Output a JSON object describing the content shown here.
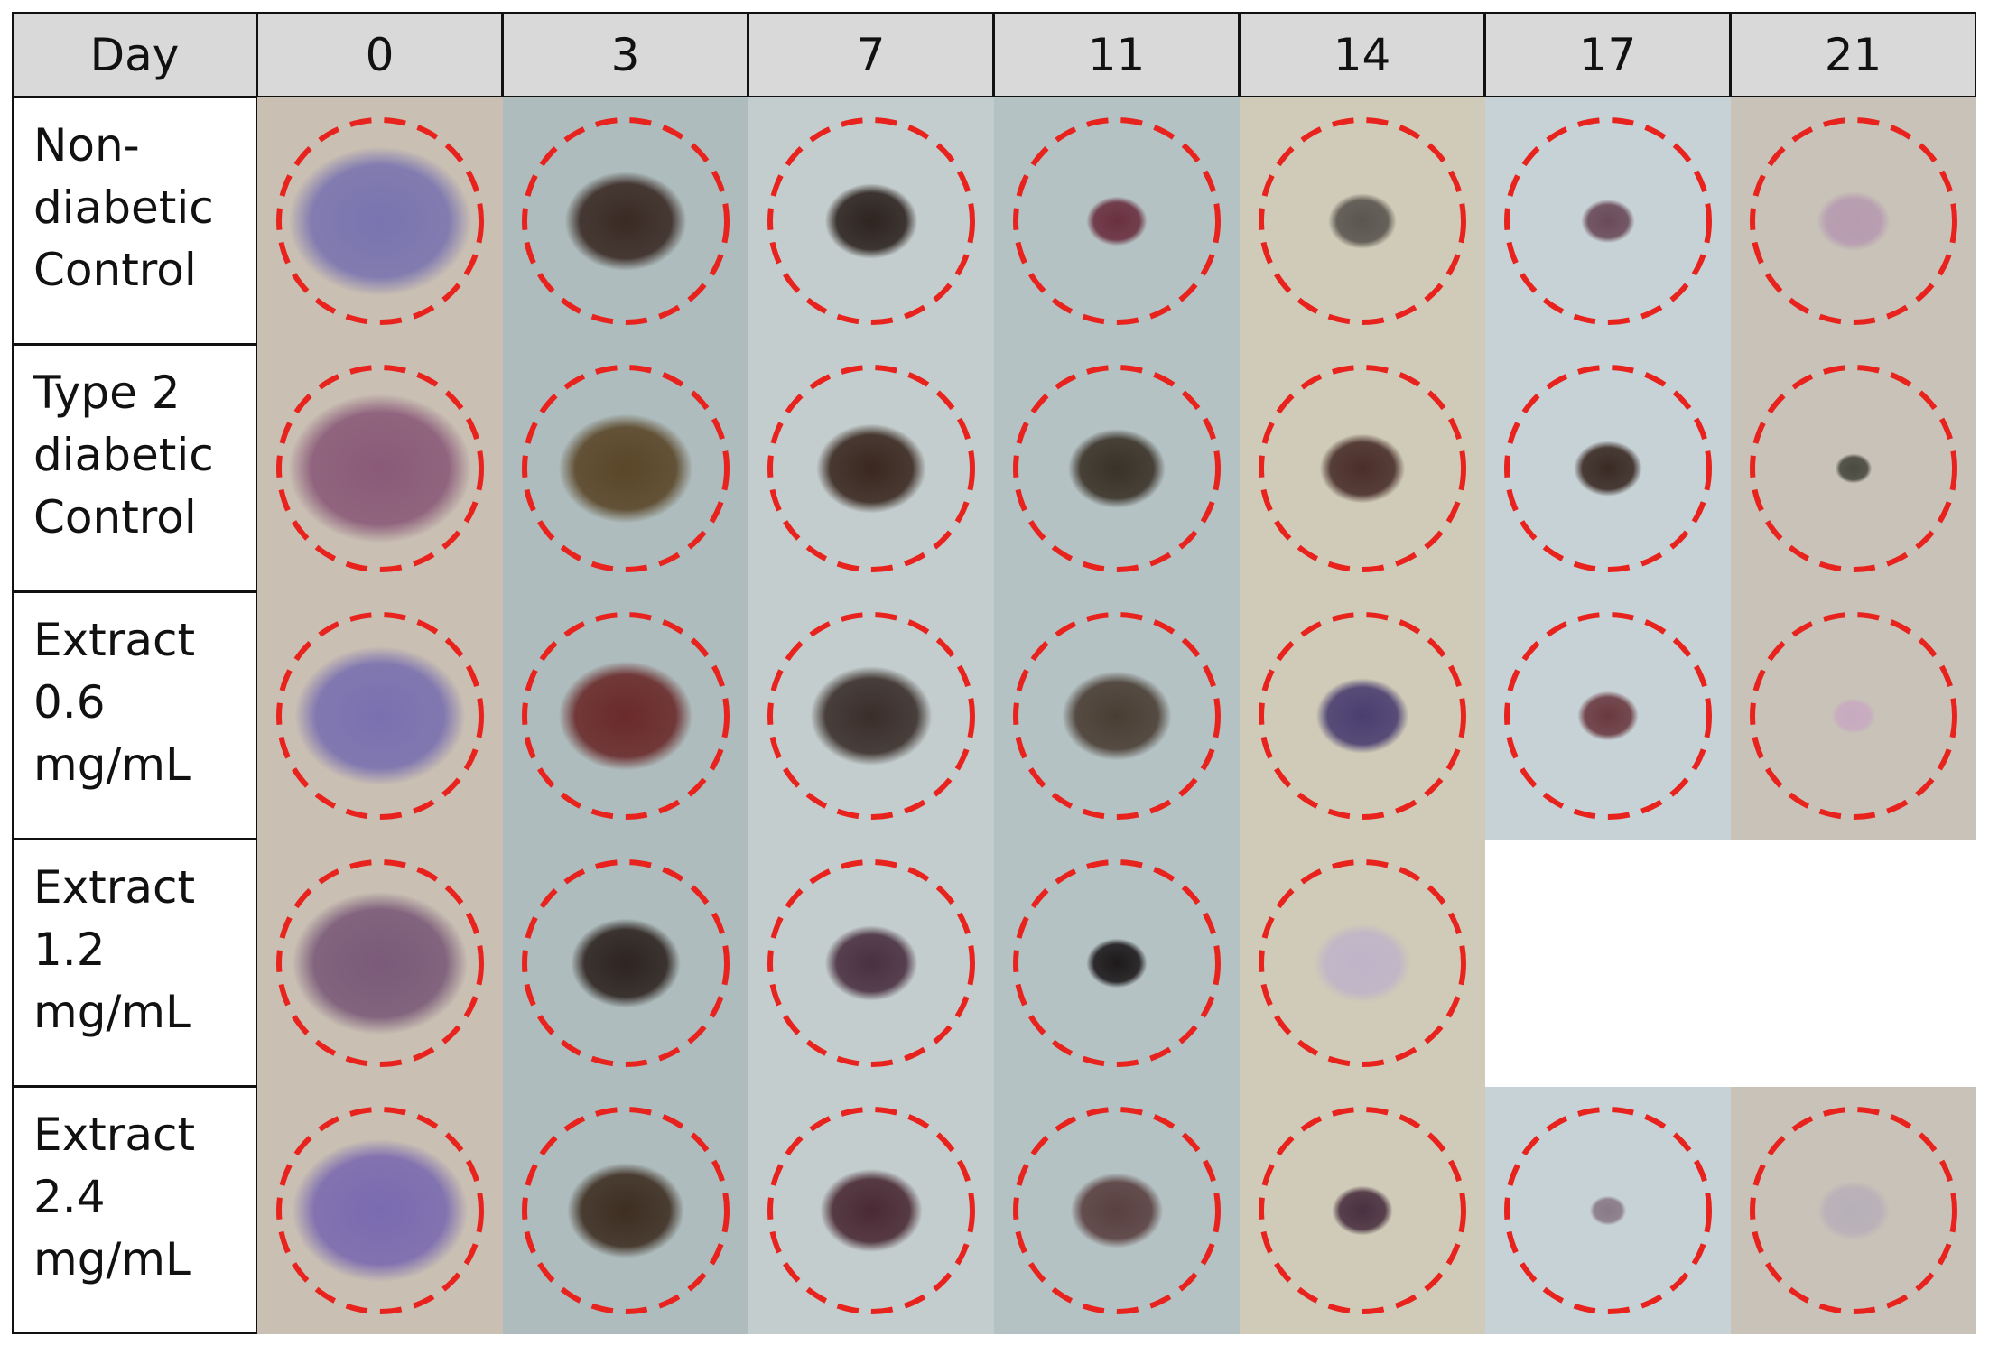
{
  "table": {
    "header": [
      "Day",
      "0",
      "3",
      "7",
      "11",
      "14",
      "17",
      "21"
    ],
    "rows": [
      {
        "label_lines": [
          "Non-",
          "diabetic",
          "Control"
        ]
      },
      {
        "label_lines": [
          "Type 2",
          "diabetic",
          "Control"
        ]
      },
      {
        "label_lines": [
          "Extract",
          "0.6",
          "mg/mL"
        ]
      },
      {
        "label_lines": [
          "Extract",
          "1.2",
          "mg/mL"
        ]
      },
      {
        "label_lines": [
          "Extract",
          "2.4",
          "mg/mL"
        ]
      }
    ]
  }
}
